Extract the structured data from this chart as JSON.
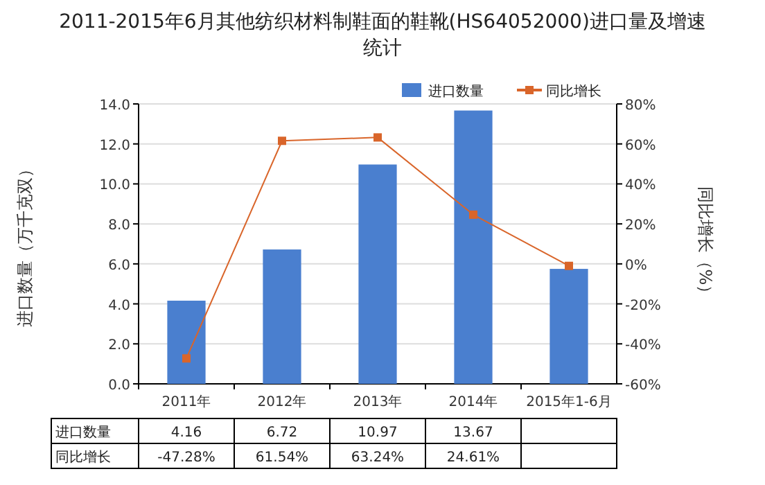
{
  "chart_data": {
    "type": "bar",
    "title": "2011-2015年6月其他纺织材料制鞋面的鞋靴(HS64052000)进口量及增速统计",
    "categories": [
      "2011年",
      "2012年",
      "2013年",
      "2014年",
      "2015年1-6月"
    ],
    "series": [
      {
        "name": "进口数量",
        "color": "#4a7fcf",
        "values": [
          4.16,
          6.72,
          10.97,
          13.67,
          5.75
        ],
        "value_labels": [
          "4.16",
          "6.72",
          "10.97",
          "13.67",
          null
        ]
      },
      {
        "name": "同比增长",
        "type": "line",
        "axis": "y2",
        "color": "#d9652a",
        "marker": "square",
        "values": [
          -47.28,
          61.54,
          63.24,
          24.61,
          -1
        ],
        "value_labels": [
          "-47.28%",
          "61.54%",
          "63.24%",
          "24.61%",
          null
        ]
      }
    ],
    "ylabel": "进口数量（万千克双）",
    "y2label": "同比增长（%）",
    "ylim": [
      0,
      14
    ],
    "yticks": [
      {
        "value": 0,
        "label": "0.0"
      },
      {
        "value": 2,
        "label": "2.0"
      },
      {
        "value": 4,
        "label": "4.0"
      },
      {
        "value": 6,
        "label": "6.0"
      },
      {
        "value": 8,
        "label": "8.0"
      },
      {
        "value": 10,
        "label": "10.0"
      },
      {
        "value": 12,
        "label": "12.0"
      },
      {
        "value": 14,
        "label": "14.0"
      }
    ],
    "y2lim": [
      -60,
      80
    ],
    "y2ticks": [
      {
        "value": -60,
        "label": "-60%"
      },
      {
        "value": -40,
        "label": "-40%"
      },
      {
        "value": -20,
        "label": "-20%"
      },
      {
        "value": 0,
        "label": "0%"
      },
      {
        "value": 20,
        "label": "20%"
      },
      {
        "value": 40,
        "label": "40%"
      },
      {
        "value": 60,
        "label": "60%"
      },
      {
        "value": 80,
        "label": "80%"
      }
    ],
    "grid": "y",
    "legend": "top right"
  }
}
